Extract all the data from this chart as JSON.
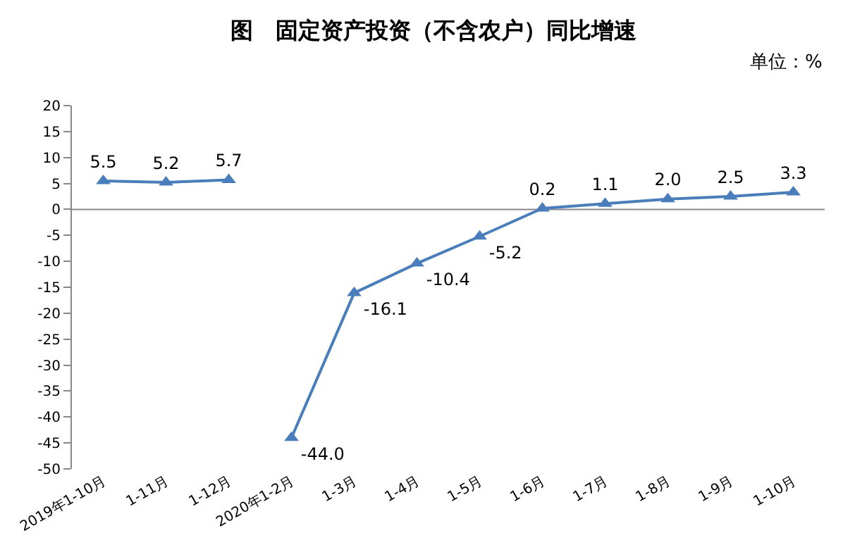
{
  "chart_data": {
    "type": "line",
    "title": "图　固定资产投资（不含农户）同比增速",
    "annotations": [
      "单位：%"
    ],
    "categories": [
      "2019年1-10月",
      "1-11月",
      "1-12月",
      "2020年1-2月",
      "1-3月",
      "1-4月",
      "1-5月",
      "1-6月",
      "1-7月",
      "1-8月",
      "1-9月",
      "1-10月"
    ],
    "series": [
      {
        "color": "#4a7ebb",
        "values": [
          5.5,
          5.2,
          5.7,
          null,
          null,
          null,
          null,
          null,
          null,
          null,
          null,
          null
        ],
        "value_labels": [
          "5.5",
          "5.2",
          "5.7",
          null,
          null,
          null,
          null,
          null,
          null,
          null,
          null,
          null
        ]
      },
      {
        "color": "#4a7ebb",
        "values": [
          null,
          null,
          null,
          -44.0,
          -16.1,
          -10.4,
          -5.2,
          0.2,
          1.1,
          2.0,
          2.5,
          3.3
        ],
        "value_labels": [
          null,
          null,
          null,
          "-44.0",
          "-16.1",
          "-10.4",
          "-5.2",
          "0.2",
          "1.1",
          "2.0",
          "2.5",
          "3.3"
        ]
      }
    ],
    "ylim": [
      -50,
      20
    ],
    "yticks": [
      -50,
      -45,
      -40,
      -35,
      -30,
      -25,
      -20,
      -15,
      -10,
      -5,
      0,
      5,
      10,
      15,
      20
    ],
    "ref_lines": [
      {
        "axis": "y",
        "value": 0,
        "color": "#888888"
      }
    ],
    "grid": false,
    "marker": "triangle",
    "line_style": "solid"
  }
}
